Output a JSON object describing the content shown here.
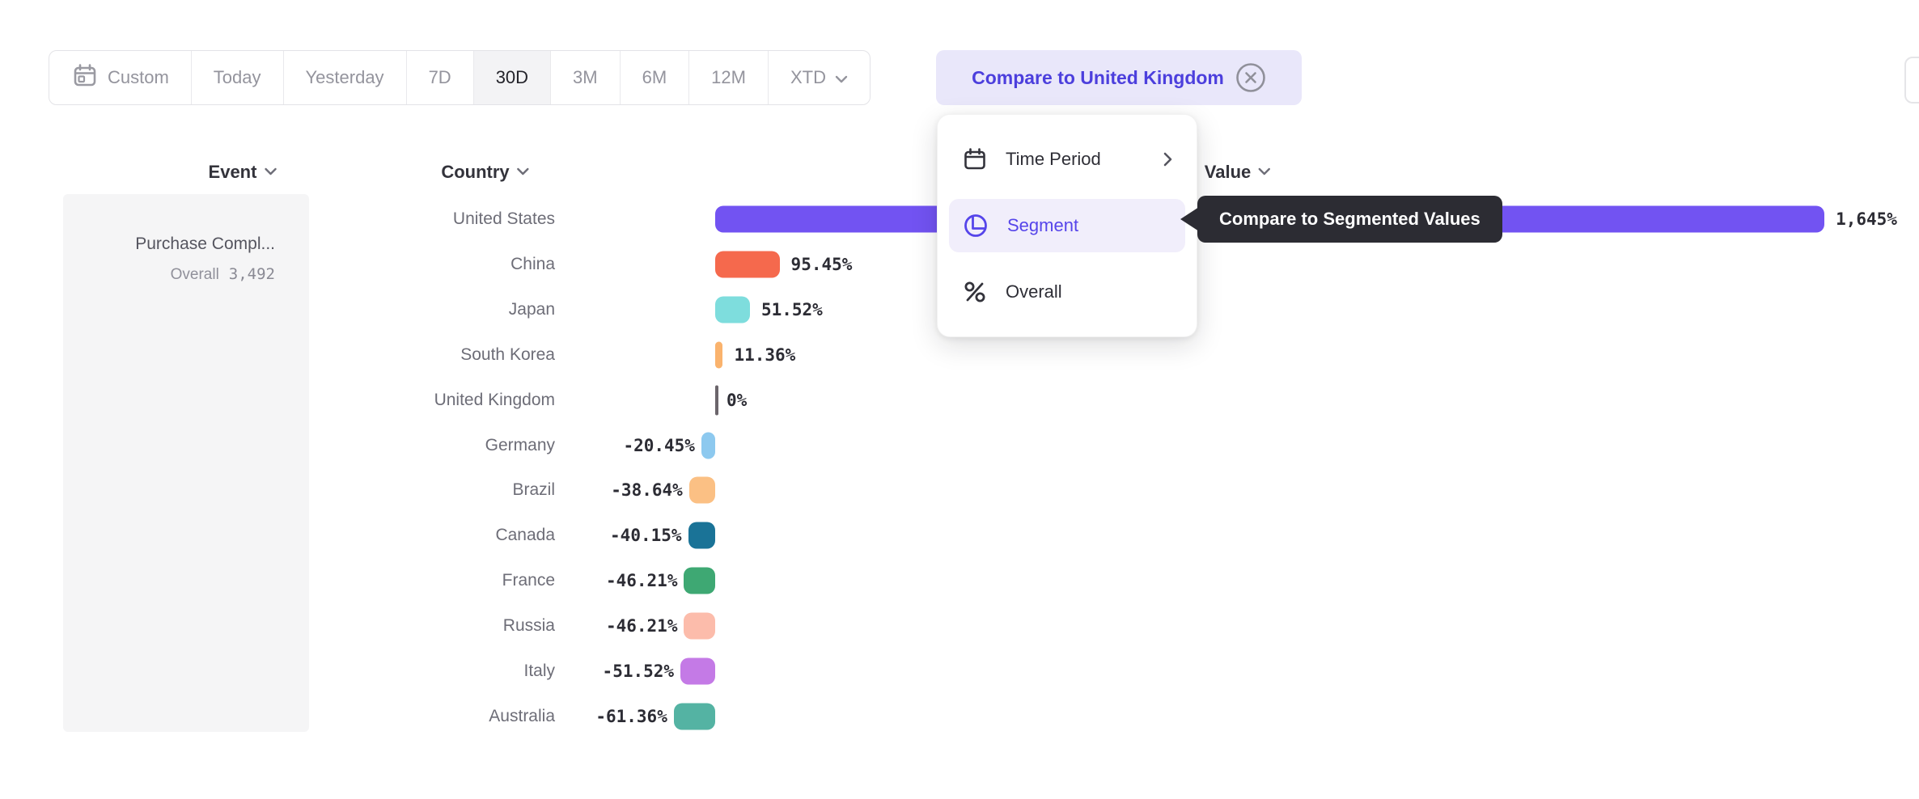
{
  "toolbar": {
    "ranges": [
      {
        "label": "Custom",
        "icon": "calendar-custom-icon",
        "selected": false
      },
      {
        "label": "Today",
        "selected": false
      },
      {
        "label": "Yesterday",
        "selected": false
      },
      {
        "label": "7D",
        "selected": false
      },
      {
        "label": "30D",
        "selected": true
      },
      {
        "label": "3M",
        "selected": false
      },
      {
        "label": "6M",
        "selected": false
      },
      {
        "label": "12M",
        "selected": false
      },
      {
        "label": "XTD",
        "icon_right": "chevron-down-icon",
        "selected": false
      }
    ],
    "compare_chip": {
      "label": "Compare to United Kingdom",
      "remove_icon": "circle-x-icon",
      "bg_color": "#e9e7fa",
      "text_color": "#4c3fdd"
    }
  },
  "columns": [
    {
      "label": "Event",
      "icon": "chevron-down-icon"
    },
    {
      "label": "Country",
      "icon": "chevron-down-icon"
    },
    {
      "label": "Value",
      "icon": "chevron-down-icon"
    }
  ],
  "event_panel": {
    "event_name": "Purchase Compl...",
    "overall_label": "Overall",
    "overall_value": "3,492"
  },
  "menu": {
    "items": [
      {
        "label": "Time Period",
        "icon": "calendar-icon",
        "has_submenu": true,
        "selected": false
      },
      {
        "label": "Segment",
        "icon": "segment-icon",
        "has_submenu": false,
        "selected": true
      },
      {
        "label": "Overall",
        "icon": "percent-icon",
        "has_submenu": false,
        "selected": false
      }
    ]
  },
  "tooltip": {
    "text": "Compare to Segmented Values",
    "bg_color": "#2c2c33"
  },
  "chart_data": {
    "type": "bar",
    "orientation": "horizontal",
    "title": "",
    "xlabel": "",
    "ylabel": "Country",
    "unit": "%",
    "baseline": 0,
    "axis_range_pct": [
      -65,
      1645
    ],
    "grid": false,
    "legend": false,
    "categories": [
      "United States",
      "China",
      "Japan",
      "South Korea",
      "United Kingdom",
      "Germany",
      "Brazil",
      "Canada",
      "France",
      "Russia",
      "Italy",
      "Australia"
    ],
    "values": [
      1645,
      95.45,
      51.52,
      11.36,
      0,
      -20.45,
      -38.64,
      -40.15,
      -46.21,
      -46.21,
      -51.52,
      -61.36
    ],
    "value_labels": [
      "1,645%",
      "95.45%",
      "51.52%",
      "11.36%",
      "0%",
      "-20.45%",
      "-38.64%",
      "-40.15%",
      "-46.21%",
      "-46.21%",
      "-51.52%",
      "-61.36%"
    ],
    "bar_colors": [
      "#7253f2",
      "#f5694d",
      "#7edddd",
      "#fab36d",
      "#6b656b",
      "#8dc9ef",
      "#fbc084",
      "#1a7397",
      "#3ea873",
      "#fcbcab",
      "#c47ae6",
      "#54b3a3"
    ],
    "patterned": [
      false,
      false,
      false,
      false,
      false,
      true,
      true,
      false,
      false,
      false,
      false,
      false
    ]
  }
}
